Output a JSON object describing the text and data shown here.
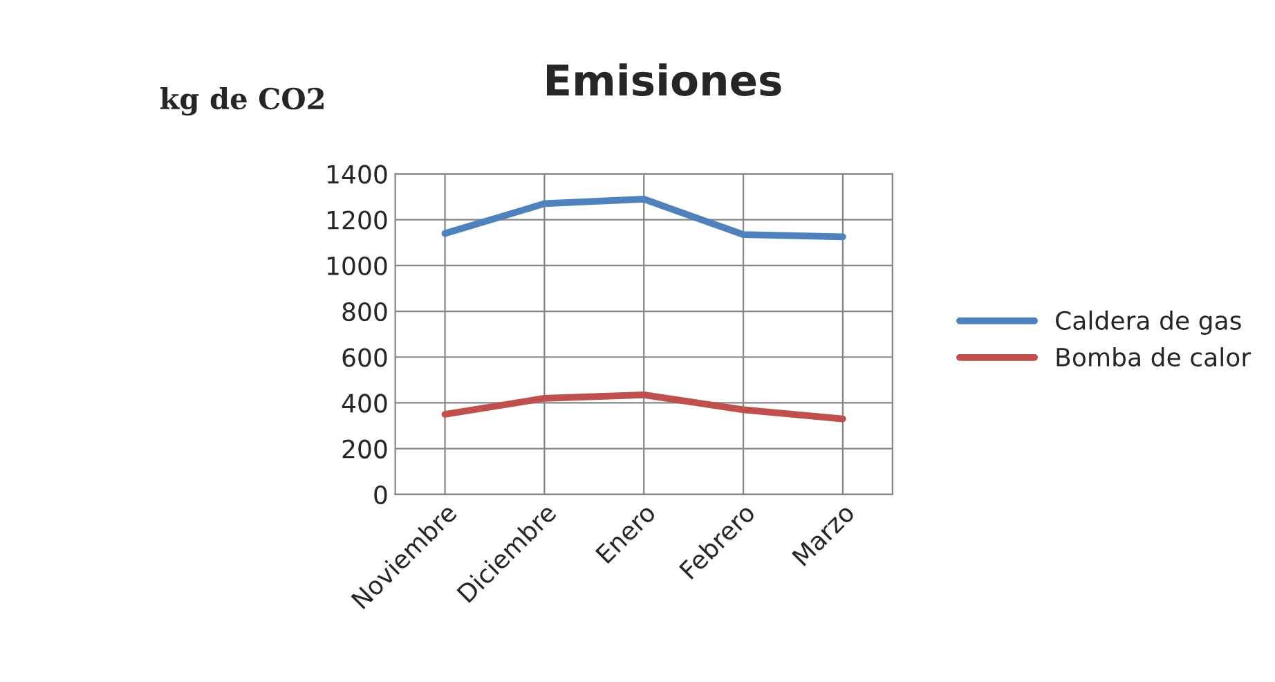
{
  "chart_data": {
    "type": "line",
    "title": "Emisiones",
    "ylabel": "kg de CO2",
    "categories": [
      "Noviembre",
      "Diciembre",
      "Enero",
      "Febrero",
      "Marzo"
    ],
    "series": [
      {
        "name": "Caldera de gas",
        "color": "#4f81bd",
        "values": [
          1140,
          1270,
          1290,
          1135,
          1125
        ]
      },
      {
        "name": "Bomba de calor",
        "color": "#c0504d",
        "values": [
          350,
          420,
          435,
          370,
          330
        ]
      }
    ],
    "ylim": [
      0,
      1400
    ],
    "yticks": [
      0,
      200,
      400,
      600,
      800,
      1000,
      1200,
      1400
    ],
    "grid": true,
    "legend": "right",
    "marker": "none",
    "line_style": "solid"
  }
}
